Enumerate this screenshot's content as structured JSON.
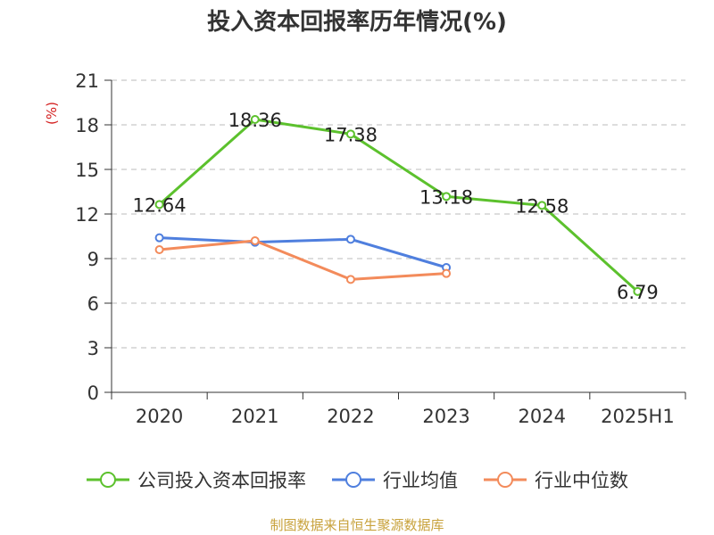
{
  "chart_data": {
    "type": "line",
    "title": "投入资本回报率历年情况(%)",
    "ylabel": "(%)",
    "categories": [
      "2020",
      "2021",
      "2022",
      "2023",
      "2024",
      "2025H1"
    ],
    "ylim": [
      0,
      21
    ],
    "yticks": [
      0,
      3,
      6,
      9,
      12,
      15,
      18,
      21
    ],
    "grid": true,
    "legend_position": "bottom",
    "series": [
      {
        "name": "公司投入资本回报率",
        "color": "#5cc12d",
        "values": [
          12.64,
          18.36,
          17.38,
          13.18,
          12.58,
          6.79
        ],
        "labels": true
      },
      {
        "name": "行业均值",
        "color": "#4f7fde",
        "values": [
          10.4,
          10.1,
          10.3,
          8.4,
          null,
          null
        ],
        "labels": false
      },
      {
        "name": "行业中位数",
        "color": "#f38b5b",
        "values": [
          9.6,
          10.2,
          7.6,
          8.0,
          null,
          null
        ],
        "labels": false
      }
    ]
  },
  "source_note": "制图数据来自恒生聚源数据库"
}
